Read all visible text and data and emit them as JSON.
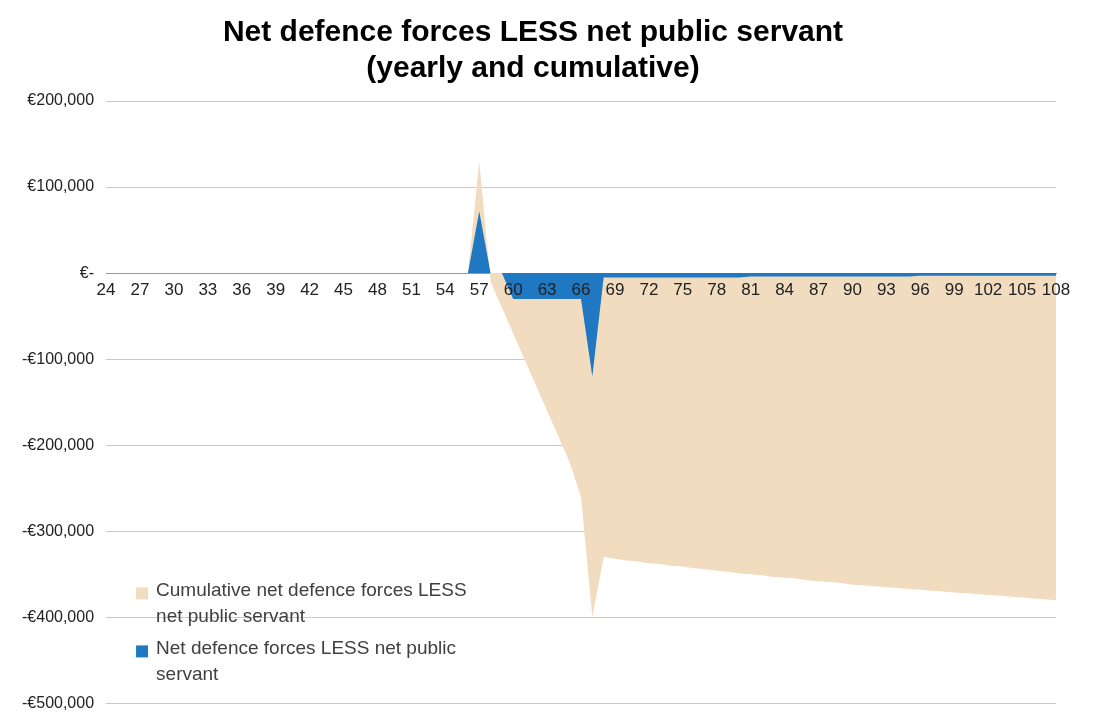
{
  "chart_data": {
    "type": "area",
    "title": "Net defence forces LESS net public servant\n(yearly and cumulative)",
    "categories": [
      "24",
      null,
      null,
      "27",
      null,
      null,
      "30",
      null,
      null,
      "33",
      null,
      null,
      "36",
      null,
      null,
      "39",
      null,
      null,
      "42",
      null,
      null,
      "45",
      null,
      null,
      "48",
      null,
      null,
      "51",
      null,
      null,
      "54",
      null,
      null,
      "57",
      null,
      null,
      "60",
      null,
      null,
      "63",
      null,
      null,
      "66",
      null,
      null,
      "69",
      null,
      null,
      "72",
      null,
      null,
      "75",
      null,
      null,
      "78",
      null,
      null,
      "81",
      null,
      null,
      "84",
      null,
      null,
      "87",
      null,
      null,
      "90",
      null,
      null,
      "93",
      null,
      null,
      "96",
      null,
      null,
      "99",
      null,
      null,
      "102",
      null,
      null,
      "105",
      null,
      null,
      "108"
    ],
    "series": [
      {
        "name": "Cumulative net defence forces LESS net public servant",
        "color": "#f2dcc0",
        "values": [
          0,
          0,
          0,
          0,
          0,
          0,
          0,
          0,
          0,
          0,
          0,
          0,
          0,
          0,
          0,
          0,
          0,
          0,
          0,
          0,
          0,
          0,
          0,
          0,
          0,
          0,
          0,
          0,
          0,
          0,
          0,
          0,
          0,
          130000,
          -10000,
          -40000,
          -70000,
          -100000,
          -130000,
          -160000,
          -190000,
          -220000,
          -260000,
          -400000,
          -330000,
          -332000,
          -334000,
          -335000,
          -337000,
          -338000,
          -340000,
          -341000,
          -343000,
          -344000,
          -346000,
          -347000,
          -349000,
          -350000,
          -351000,
          -353000,
          -354000,
          -355000,
          -357000,
          -358000,
          -359000,
          -360000,
          -362000,
          -363000,
          -364000,
          -365000,
          -366000,
          -367000,
          -368000,
          -369000,
          -370000,
          -371000,
          -372000,
          -373000,
          -374000,
          -375000,
          -376000,
          -377000,
          -378000,
          -379000,
          -380000
        ]
      },
      {
        "name": "Net defence forces LESS net public servant",
        "color": "#1f78c1",
        "values": [
          0,
          0,
          0,
          0,
          0,
          0,
          0,
          0,
          0,
          0,
          0,
          0,
          0,
          0,
          0,
          0,
          0,
          0,
          0,
          0,
          0,
          0,
          0,
          0,
          0,
          0,
          0,
          0,
          0,
          0,
          0,
          0,
          0,
          72000,
          0,
          0,
          -30000,
          -30000,
          -30000,
          -30000,
          -30000,
          -30000,
          -30000,
          -120000,
          -5000,
          -5000,
          -5000,
          -5000,
          -5000,
          -5000,
          -5000,
          -5000,
          -5000,
          -5000,
          -5000,
          -5000,
          -5000,
          -4000,
          -4000,
          -4000,
          -4000,
          -4000,
          -4000,
          -4000,
          -4000,
          -4000,
          -4000,
          -4000,
          -4000,
          -4000,
          -4000,
          -4000,
          -3000,
          -3000,
          -3000,
          -3000,
          -3000,
          -3000,
          -3000,
          -3000,
          -3000,
          -3000,
          -3000,
          -3000,
          -3000
        ]
      }
    ],
    "ylim": [
      -500000,
      200000
    ],
    "yticks": [
      {
        "value": 200000,
        "label": "€200,000"
      },
      {
        "value": 100000,
        "label": "€100,000"
      },
      {
        "value": 0,
        "label": "€-"
      },
      {
        "value": -100000,
        "label": "-€100,000"
      },
      {
        "value": -200000,
        "label": "-€200,000"
      },
      {
        "value": -300000,
        "label": "-€300,000"
      },
      {
        "value": -400000,
        "label": "-€400,000"
      },
      {
        "value": -500000,
        "label": "-€500,000"
      }
    ],
    "grid": "y",
    "legend": "bottom left"
  }
}
